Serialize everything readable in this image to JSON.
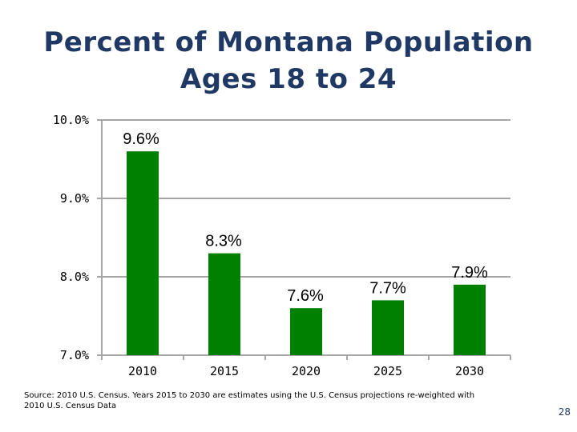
{
  "title_line1": "Percent of Montana Population",
  "title_line2": "Ages 18 to 24",
  "source": "Source:  2010 U.S. Census.   Years 2015 to 2030 are estimates using the U.S. Census projections re-weighted with 2010 U.S. Census Data",
  "page_number": "28",
  "chart_data": {
    "type": "bar",
    "title": "Percent of Montana Population Ages 18 to 24",
    "categories": [
      "2010",
      "2015",
      "2020",
      "2025",
      "2030"
    ],
    "values": [
      9.6,
      8.3,
      7.6,
      7.7,
      7.9
    ],
    "data_labels": [
      "9.6%",
      "8.3%",
      "7.6%",
      "7.7%",
      "7.9%"
    ],
    "ylim": [
      7.0,
      10.0
    ],
    "yticks": [
      7.0,
      8.0,
      9.0,
      10.0
    ],
    "ytick_labels": [
      "7.0%",
      "8.0%",
      "9.0%",
      "10.0%"
    ],
    "xlabel": "",
    "ylabel": "",
    "grid": true,
    "bar_color": "#008000",
    "grid_color": "#A6A6A6"
  }
}
